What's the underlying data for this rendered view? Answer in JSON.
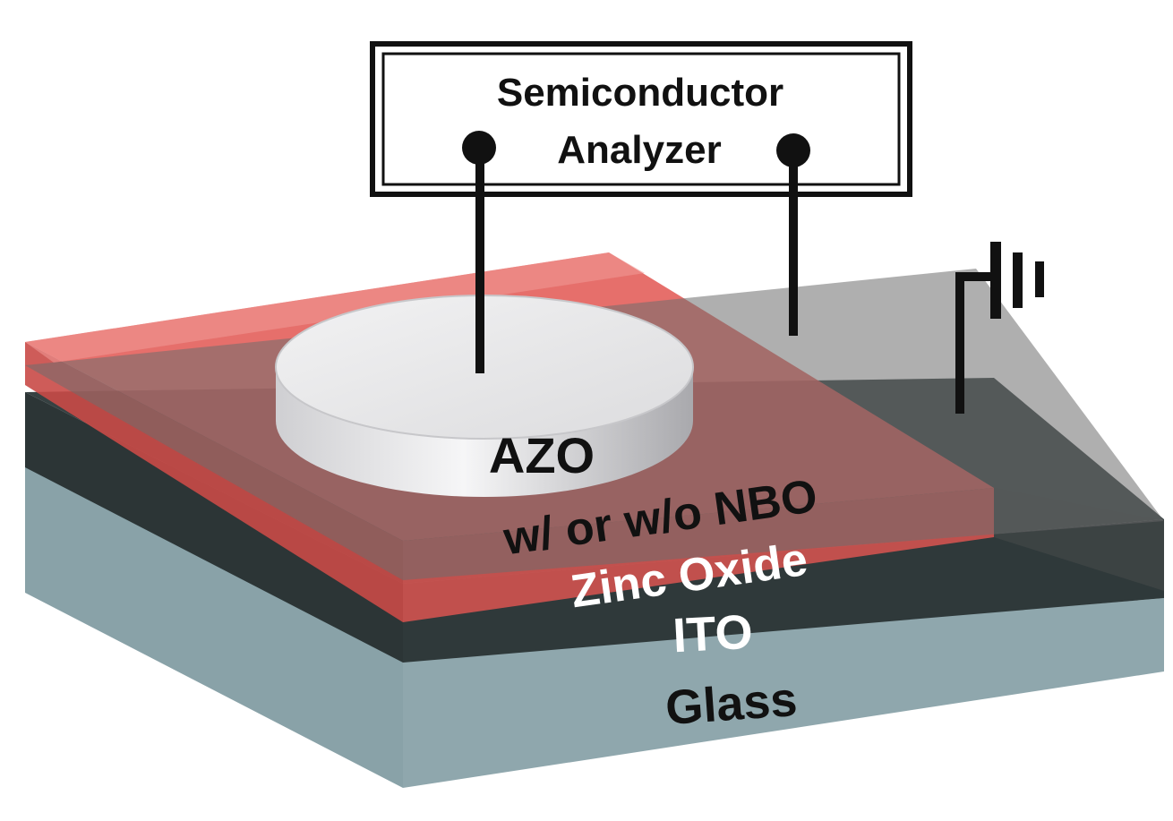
{
  "analyzer": {
    "line1": "Semiconductor",
    "line2": "Analyzer"
  },
  "layers": {
    "electrode": "AZO",
    "switching_line1": "w/ or w/o NBO",
    "switching_line2": "Zinc Oxide",
    "bottom_electrode": "ITO",
    "substrate": "Glass"
  },
  "colors": {
    "glass": "#8fa7ad",
    "ito": "#2c3536",
    "zinc_oxide": "#d9534f",
    "azo": "#e4e4e6",
    "wire": "#111111"
  },
  "icons": {
    "ground": "ground-symbol"
  }
}
